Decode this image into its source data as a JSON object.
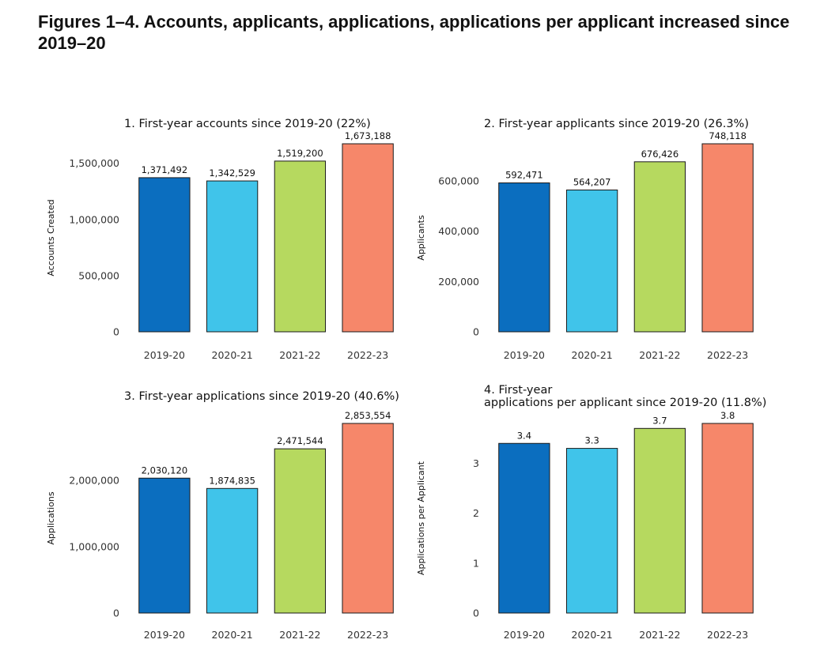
{
  "header": {
    "title": "Figures 1–4. Accounts, applicants, applications, applications per applicant increased since 2019–20"
  },
  "colors": [
    "#0b6ebf",
    "#40c4ea",
    "#b6d95f",
    "#f6876a"
  ],
  "chart_data": [
    {
      "type": "bar",
      "title": "1. First-year accounts since 2019-20 (22%)",
      "categories": [
        "2019-20",
        "2020-21",
        "2021-22",
        "2022-23"
      ],
      "values": [
        1371492,
        1342529,
        1519200,
        1673188
      ],
      "value_labels": [
        "1,371,492",
        "1,342,529",
        "1,519,200",
        "1,673,188"
      ],
      "xlabel": "",
      "ylabel": "Accounts Created",
      "ylim": [
        0,
        1673188
      ],
      "yticks": [
        0,
        500000,
        1000000,
        1500000
      ],
      "ytick_labels": [
        "0",
        "500,000",
        "1,000,000",
        "1,500,000"
      ],
      "grid": false
    },
    {
      "type": "bar",
      "title": "2. First-year applicants since 2019-20 (26.3%)",
      "categories": [
        "2019-20",
        "2020-21",
        "2021-22",
        "2022-23"
      ],
      "values": [
        592471,
        564207,
        676426,
        748118
      ],
      "value_labels": [
        "592,471",
        "564,207",
        "676,426",
        "748,118"
      ],
      "xlabel": "",
      "ylabel": "Applicants",
      "ylim": [
        0,
        748118
      ],
      "yticks": [
        0,
        200000,
        400000,
        600000
      ],
      "ytick_labels": [
        "0",
        "200,000",
        "400,000",
        "600,000"
      ],
      "grid": false
    },
    {
      "type": "bar",
      "title": "3. First-year applications since 2019-20 (40.6%)",
      "categories": [
        "2019-20",
        "2020-21",
        "2021-22",
        "2022-23"
      ],
      "values": [
        2030120,
        1874835,
        2471544,
        2853554
      ],
      "value_labels": [
        "2,030,120",
        "1,874,835",
        "2,471,544",
        "2,853,554"
      ],
      "xlabel": "",
      "ylabel": "Applications",
      "ylim": [
        0,
        2853554
      ],
      "yticks": [
        0,
        1000000,
        2000000
      ],
      "ytick_labels": [
        "0",
        "1,000,000",
        "2,000,000"
      ],
      "grid": false
    },
    {
      "type": "bar",
      "title": [
        "4. First-year",
        "applications per applicant since 2019-20 (11.8%)"
      ],
      "categories": [
        "2019-20",
        "2020-21",
        "2021-22",
        "2022-23"
      ],
      "values": [
        3.4,
        3.3,
        3.7,
        3.8
      ],
      "value_labels": [
        "3.4",
        "3.3",
        "3.7",
        "3.8"
      ],
      "xlabel": "",
      "ylabel": "Applications per Applicant",
      "ylim": [
        0,
        3.8
      ],
      "yticks": [
        0,
        1,
        2,
        3
      ],
      "ytick_labels": [
        "0",
        "1",
        "2",
        "3"
      ],
      "grid": false
    }
  ]
}
